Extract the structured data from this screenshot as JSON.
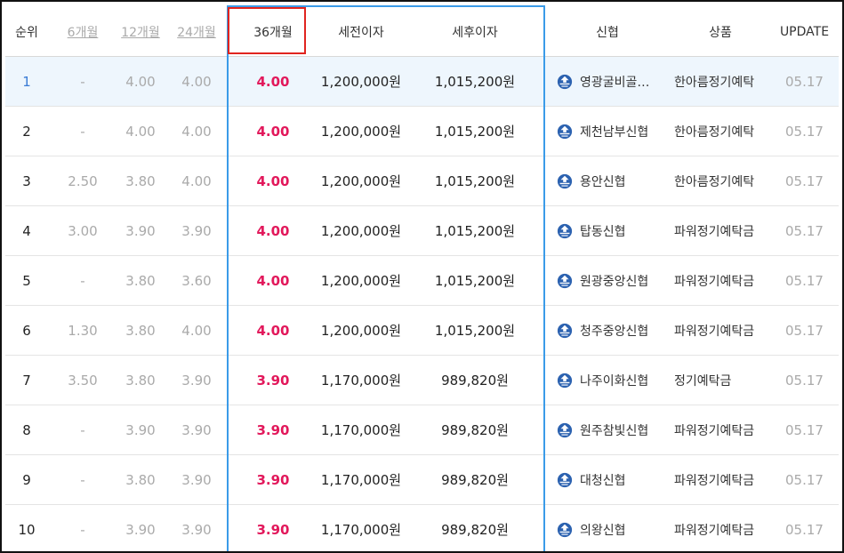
{
  "header": {
    "rank": "순위",
    "m6": "6개월",
    "m12": "12개월",
    "m24": "24개월",
    "m36": "36개월",
    "pretax": "세전이자",
    "aftertax": "세후이자",
    "bank": "신협",
    "product": "상품",
    "update": "UPDATE"
  },
  "rows": [
    {
      "rank": "1",
      "m6": "-",
      "m12": "4.00",
      "m24": "4.00",
      "m36": "4.00",
      "pretax": "1,200,000원",
      "aftertax": "1,015,200원",
      "bank": "영광굴비골…",
      "product": "한아름정기예탁",
      "update": "05.17"
    },
    {
      "rank": "2",
      "m6": "-",
      "m12": "4.00",
      "m24": "4.00",
      "m36": "4.00",
      "pretax": "1,200,000원",
      "aftertax": "1,015,200원",
      "bank": "제천남부신협",
      "product": "한아름정기예탁",
      "update": "05.17"
    },
    {
      "rank": "3",
      "m6": "2.50",
      "m12": "3.80",
      "m24": "4.00",
      "m36": "4.00",
      "pretax": "1,200,000원",
      "aftertax": "1,015,200원",
      "bank": "용안신협",
      "product": "한아름정기예탁",
      "update": "05.17"
    },
    {
      "rank": "4",
      "m6": "3.00",
      "m12": "3.90",
      "m24": "3.90",
      "m36": "4.00",
      "pretax": "1,200,000원",
      "aftertax": "1,015,200원",
      "bank": "탑동신협",
      "product": "파워정기예탁금",
      "update": "05.17"
    },
    {
      "rank": "5",
      "m6": "-",
      "m12": "3.80",
      "m24": "3.60",
      "m36": "4.00",
      "pretax": "1,200,000원",
      "aftertax": "1,015,200원",
      "bank": "원광중앙신협",
      "product": "파워정기예탁금",
      "update": "05.17"
    },
    {
      "rank": "6",
      "m6": "1.30",
      "m12": "3.80",
      "m24": "4.00",
      "m36": "4.00",
      "pretax": "1,200,000원",
      "aftertax": "1,015,200원",
      "bank": "청주중앙신협",
      "product": "파워정기예탁금",
      "update": "05.17"
    },
    {
      "rank": "7",
      "m6": "3.50",
      "m12": "3.80",
      "m24": "3.90",
      "m36": "3.90",
      "pretax": "1,170,000원",
      "aftertax": "989,820원",
      "bank": "나주이화신협",
      "product": "정기예탁금",
      "update": "05.17"
    },
    {
      "rank": "8",
      "m6": "-",
      "m12": "3.90",
      "m24": "3.90",
      "m36": "3.90",
      "pretax": "1,170,000원",
      "aftertax": "989,820원",
      "bank": "원주참빛신협",
      "product": "파워정기예탁금",
      "update": "05.17"
    },
    {
      "rank": "9",
      "m6": "-",
      "m12": "3.80",
      "m24": "3.90",
      "m36": "3.90",
      "pretax": "1,170,000원",
      "aftertax": "989,820원",
      "bank": "대청신협",
      "product": "파워정기예탁금",
      "update": "05.17"
    },
    {
      "rank": "10",
      "m6": "-",
      "m12": "3.90",
      "m24": "3.90",
      "m36": "3.90",
      "pretax": "1,170,000원",
      "aftertax": "989,820원",
      "bank": "의왕신협",
      "product": "파워정기예탁금",
      "update": "05.17"
    }
  ],
  "colors": {
    "accent_blue": "#3b9be8",
    "rate_red": "#e2185b",
    "box_red": "#e0241f",
    "highlight_row": "#eef6fd"
  },
  "icons": {
    "bank": "shinhyup-logo-icon"
  }
}
